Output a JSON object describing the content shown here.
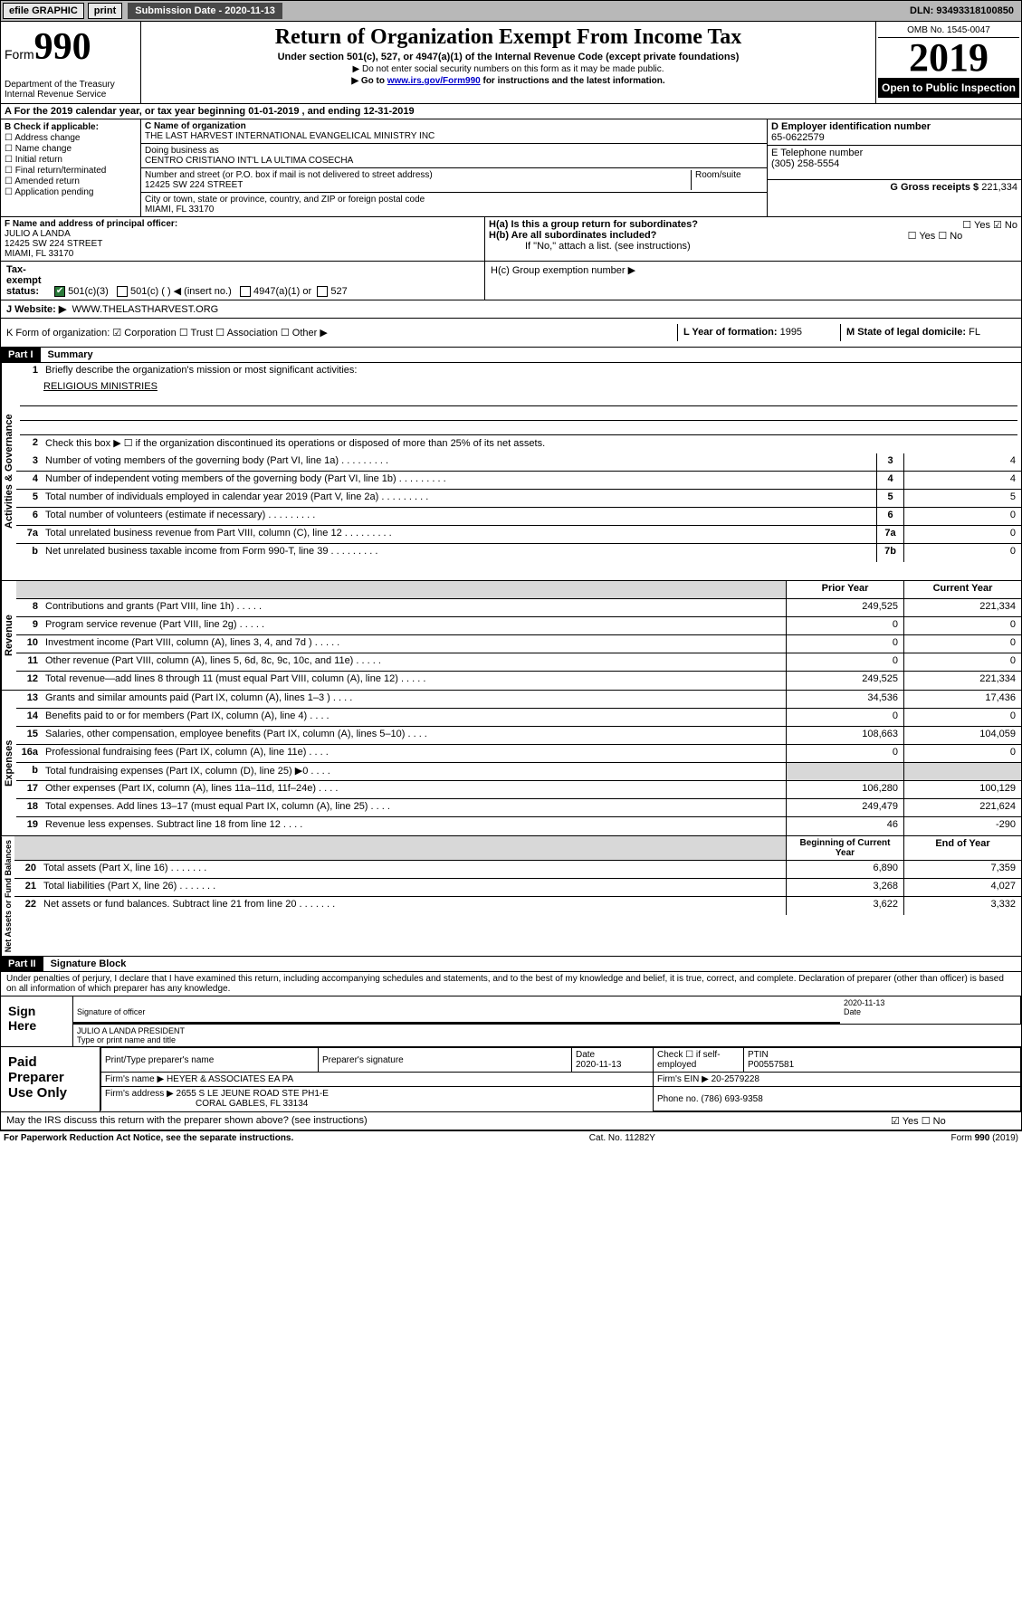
{
  "topbar": {
    "efile": "efile GRAPHIC",
    "print": "print",
    "submission_label": "Submission Date - 2020-11-13",
    "dln": "DLN: 93493318100850"
  },
  "header": {
    "form_prefix": "Form",
    "form_number": "990",
    "dept": "Department of the Treasury Internal Revenue Service",
    "title": "Return of Organization Exempt From Income Tax",
    "subtitle": "Under section 501(c), 527, or 4947(a)(1) of the Internal Revenue Code (except private foundations)",
    "note1": "▶ Do not enter social security numbers on this form as it may be made public.",
    "note2_prefix": "▶ Go to ",
    "note2_link": "www.irs.gov/Form990",
    "note2_suffix": " for instructions and the latest information.",
    "omb": "OMB No. 1545-0047",
    "year": "2019",
    "open": "Open to Public Inspection"
  },
  "section_a": "A For the 2019 calendar year, or tax year beginning 01-01-2019    , and ending 12-31-2019",
  "box_b": {
    "label": "B Check if applicable:",
    "items": [
      "☐ Address change",
      "☐ Name change",
      "☐ Initial return",
      "☐ Final return/terminated",
      "☐ Amended return",
      "☐ Application pending"
    ]
  },
  "box_c": {
    "name_label": "C Name of organization",
    "name": "THE LAST HARVEST INTERNATIONAL EVANGELICAL MINISTRY INC",
    "dba_label": "Doing business as",
    "dba": "CENTRO CRISTIANO INT'L LA ULTIMA COSECHA",
    "addr_label": "Number and street (or P.O. box if mail is not delivered to street address)",
    "room_label": "Room/suite",
    "addr": "12425 SW 224 STREET",
    "city_label": "City or town, state or province, country, and ZIP or foreign postal code",
    "city": "MIAMI, FL  33170"
  },
  "box_d": {
    "label": "D Employer identification number",
    "value": "65-0622579"
  },
  "box_e": {
    "label": "E Telephone number",
    "value": "(305) 258-5554"
  },
  "box_g": {
    "label": "G Gross receipts $",
    "value": "221,334"
  },
  "box_f": {
    "label": "F  Name and address of principal officer:",
    "name": "JULIO A LANDA",
    "addr": "12425 SW 224 STREET",
    "city": "MIAMI, FL 33170"
  },
  "box_h": {
    "a": "H(a)  Is this a group return for subordinates?",
    "a_ans": "☐ Yes  ☑ No",
    "b": "H(b)  Are all subordinates included?",
    "b_ans": "☐ Yes  ☐ No",
    "b_note": "If \"No,\" attach a list. (see instructions)",
    "c": "H(c)  Group exemption number ▶"
  },
  "tax_status": {
    "label": "Tax-exempt status:",
    "opt1": "501(c)(3)",
    "opt2": "501(c) (   ) ◀ (insert no.)",
    "opt3": "4947(a)(1) or",
    "opt4": "527"
  },
  "box_j": {
    "label": "J    Website: ▶",
    "value": "WWW.THELASTHARVEST.ORG"
  },
  "box_k": "K Form of organization:  ☑ Corporation  ☐ Trust  ☐ Association  ☐ Other ▶",
  "box_l": {
    "label": "L Year of formation:",
    "value": "1995"
  },
  "box_m": {
    "label": "M State of legal domicile:",
    "value": "FL"
  },
  "part1": {
    "label": "Part I",
    "title": "Summary"
  },
  "activities": {
    "label": "Activities & Governance",
    "line1": "Briefly describe the organization's mission or most significant activities:",
    "mission": "RELIGIOUS MINISTRIES",
    "line2": "Check this box ▶ ☐  if the organization discontinued its operations or disposed of more than 25% of its net assets.",
    "rows": [
      {
        "n": "3",
        "t": "Number of voting members of the governing body (Part VI, line 1a)",
        "c": "3",
        "v": "4"
      },
      {
        "n": "4",
        "t": "Number of independent voting members of the governing body (Part VI, line 1b)",
        "c": "4",
        "v": "4"
      },
      {
        "n": "5",
        "t": "Total number of individuals employed in calendar year 2019 (Part V, line 2a)",
        "c": "5",
        "v": "5"
      },
      {
        "n": "6",
        "t": "Total number of volunteers (estimate if necessary)",
        "c": "6",
        "v": "0"
      },
      {
        "n": "7a",
        "t": "Total unrelated business revenue from Part VIII, column (C), line 12",
        "c": "7a",
        "v": "0"
      },
      {
        "n": "b",
        "t": "Net unrelated business taxable income from Form 990-T, line 39",
        "c": "7b",
        "v": "0"
      }
    ]
  },
  "revenue": {
    "label": "Revenue",
    "header_prior": "Prior Year",
    "header_current": "Current Year",
    "rows": [
      {
        "n": "8",
        "t": "Contributions and grants (Part VIII, line 1h)",
        "p": "249,525",
        "c": "221,334"
      },
      {
        "n": "9",
        "t": "Program service revenue (Part VIII, line 2g)",
        "p": "0",
        "c": "0"
      },
      {
        "n": "10",
        "t": "Investment income (Part VIII, column (A), lines 3, 4, and 7d )",
        "p": "0",
        "c": "0"
      },
      {
        "n": "11",
        "t": "Other revenue (Part VIII, column (A), lines 5, 6d, 8c, 9c, 10c, and 11e)",
        "p": "0",
        "c": "0"
      },
      {
        "n": "12",
        "t": "Total revenue—add lines 8 through 11 (must equal Part VIII, column (A), line 12)",
        "p": "249,525",
        "c": "221,334"
      }
    ]
  },
  "expenses": {
    "label": "Expenses",
    "rows": [
      {
        "n": "13",
        "t": "Grants and similar amounts paid (Part IX, column (A), lines 1–3 )",
        "p": "34,536",
        "c": "17,436"
      },
      {
        "n": "14",
        "t": "Benefits paid to or for members (Part IX, column (A), line 4)",
        "p": "0",
        "c": "0"
      },
      {
        "n": "15",
        "t": "Salaries, other compensation, employee benefits (Part IX, column (A), lines 5–10)",
        "p": "108,663",
        "c": "104,059"
      },
      {
        "n": "16a",
        "t": "Professional fundraising fees (Part IX, column (A), line 11e)",
        "p": "0",
        "c": "0"
      },
      {
        "n": "b",
        "t": "Total fundraising expenses (Part IX, column (D), line 25) ▶0",
        "p": "",
        "c": "",
        "shaded": true
      },
      {
        "n": "17",
        "t": "Other expenses (Part IX, column (A), lines 11a–11d, 11f–24e)",
        "p": "106,280",
        "c": "100,129"
      },
      {
        "n": "18",
        "t": "Total expenses. Add lines 13–17 (must equal Part IX, column (A), line 25)",
        "p": "249,479",
        "c": "221,624"
      },
      {
        "n": "19",
        "t": "Revenue less expenses. Subtract line 18 from line 12",
        "p": "46",
        "c": "-290"
      }
    ]
  },
  "netassets": {
    "label": "Net Assets or Fund Balances",
    "header_begin": "Beginning of Current Year",
    "header_end": "End of Year",
    "rows": [
      {
        "n": "20",
        "t": "Total assets (Part X, line 16)",
        "p": "6,890",
        "c": "7,359"
      },
      {
        "n": "21",
        "t": "Total liabilities (Part X, line 26)",
        "p": "3,268",
        "c": "4,027"
      },
      {
        "n": "22",
        "t": "Net assets or fund balances. Subtract line 21 from line 20",
        "p": "3,622",
        "c": "3,332"
      }
    ]
  },
  "part2": {
    "label": "Part II",
    "title": "Signature Block"
  },
  "sig": {
    "declaration": "Under penalties of perjury, I declare that I have examined this return, including accompanying schedules and statements, and to the best of my knowledge and belief, it is true, correct, and complete. Declaration of preparer (other than officer) is based on all information of which preparer has any knowledge.",
    "sign_here": "Sign Here",
    "sig_officer": "Signature of officer",
    "date": "2020-11-13",
    "date_label": "Date",
    "name_title": "JULIO A LANDA  PRESIDENT",
    "name_label": "Type or print name and title"
  },
  "preparer": {
    "label": "Paid Preparer Use Only",
    "h1": "Print/Type preparer's name",
    "h2": "Preparer's signature",
    "h3": "Date",
    "h3v": "2020-11-13",
    "h4": "Check ☐ if self-employed",
    "h5": "PTIN",
    "h5v": "P00557581",
    "firm_label": "Firm's name     ▶",
    "firm": "HEYER & ASSOCIATES EA PA",
    "ein_label": "Firm's EIN ▶",
    "ein": "20-2579228",
    "addr_label": "Firm's address ▶",
    "addr": "2655 S LE JEUNE ROAD STE PH1-E",
    "addr2": "CORAL GABLES, FL  33134",
    "phone_label": "Phone no.",
    "phone": "(786) 693-9358"
  },
  "discuss": {
    "text": "May the IRS discuss this return with the preparer shown above? (see instructions)",
    "ans": "☑ Yes   ☐ No"
  },
  "footer": {
    "left": "For Paperwork Reduction Act Notice, see the separate instructions.",
    "mid": "Cat. No. 11282Y",
    "right": "Form 990 (2019)"
  }
}
